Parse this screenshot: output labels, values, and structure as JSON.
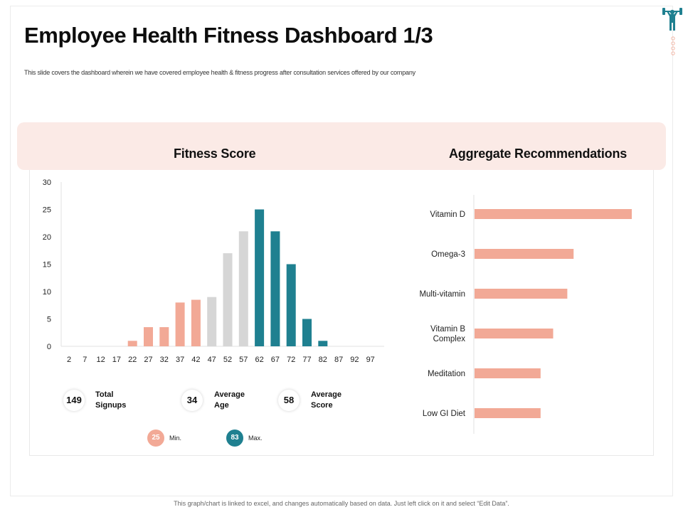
{
  "title": "Employee Health Fitness Dashboard 1/3",
  "subtitle": "This slide covers the dashboard wherein we have covered employee health & fitness progress after consultation services offered by our company",
  "colors": {
    "salmon": "#f2a996",
    "gray": "#d6d6d6",
    "teal": "#1f8090",
    "band": "#fbeae6"
  },
  "sections": {
    "left_title": "Fitness Score",
    "right_title": "Aggregate Recommendations"
  },
  "stats": [
    {
      "value": "149",
      "label_line1": "Total",
      "label_line2": "Signups"
    },
    {
      "value": "34",
      "label_line1": "Average",
      "label_line2": "Age"
    },
    {
      "value": "58",
      "label_line1": "Average",
      "label_line2": "Score"
    }
  ],
  "minmax": {
    "min_value": "25",
    "min_label": "Min.",
    "max_value": "83",
    "max_label": "Max."
  },
  "footer": "This graph/chart is linked to excel, and changes automatically based on data. Just left click on it and select “Edit Data”.",
  "chart_data": [
    {
      "type": "bar",
      "title": "Fitness Score",
      "categories": [
        "2",
        "7",
        "12",
        "17",
        "22",
        "27",
        "32",
        "37",
        "42",
        "47",
        "52",
        "57",
        "62",
        "67",
        "72",
        "77",
        "82",
        "87",
        "92",
        "97"
      ],
      "values": [
        0,
        0,
        0,
        0,
        1,
        3.5,
        3.5,
        8,
        8.5,
        9,
        17,
        21,
        25,
        21,
        15,
        5,
        1,
        0,
        0,
        0
      ],
      "bar_colors": [
        "salmon",
        "salmon",
        "salmon",
        "salmon",
        "salmon",
        "salmon",
        "salmon",
        "salmon",
        "salmon",
        "gray",
        "gray",
        "gray",
        "teal",
        "teal",
        "teal",
        "teal",
        "teal",
        "teal",
        "teal",
        "teal"
      ],
      "yticks": [
        "0",
        "5",
        "10",
        "15",
        "20",
        "25",
        "30"
      ],
      "ylim": [
        0,
        30
      ],
      "grid": false
    },
    {
      "type": "bar",
      "orientation": "horizontal",
      "title": "Aggregate Recommendations",
      "categories": [
        "Vitamin D",
        "Omega-3",
        "Multi-vitamin",
        "Vitamin B Complex",
        "Meditation",
        "Low GI Diet"
      ],
      "values": [
        100,
        63,
        59,
        50,
        42,
        42
      ],
      "xlim": [
        0,
        100
      ],
      "axis_labels_shown": false
    }
  ]
}
